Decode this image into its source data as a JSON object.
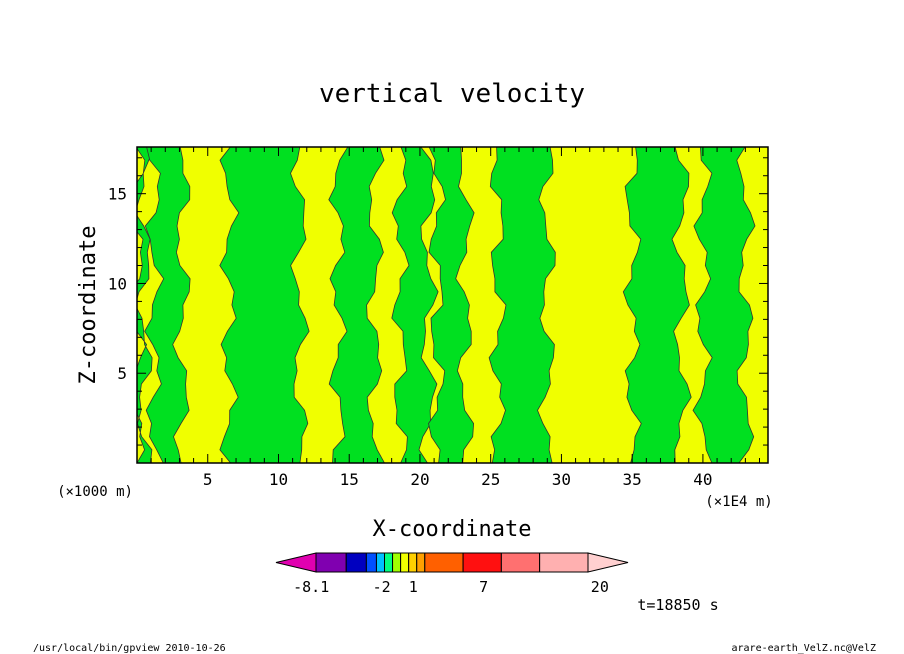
{
  "chart_data": {
    "type": "heatmap",
    "title": "vertical velocity",
    "xlabel": "X-coordinate",
    "ylabel": "Z-coordinate",
    "x_unit_note": "(×1E4 m)",
    "y_unit_note": "(×1000 m)",
    "xlim": [
      0,
      44.6
    ],
    "ylim": [
      0,
      17.6
    ],
    "xticks": [
      5,
      10,
      15,
      20,
      25,
      30,
      35,
      40
    ],
    "yticks": [
      5,
      10,
      15
    ],
    "xtick_labels": [
      "5",
      "10",
      "15",
      "20",
      "25",
      "30",
      "35",
      "40"
    ],
    "ytick_labels": [
      "5",
      "10",
      "15"
    ],
    "colors": {
      "negative_weak": "#00e020",
      "positive_weak": "#f0ff00",
      "contour": "#333333"
    },
    "green_regions_x_ranges": [
      [
        0.0,
        0.5
      ],
      [
        1.2,
        3.2
      ],
      [
        6.5,
        11.5
      ],
      [
        14.2,
        16.8
      ],
      [
        18.6,
        20.6
      ],
      [
        21.2,
        23.2
      ],
      [
        25.5,
        29.0
      ],
      [
        35.0,
        38.5
      ],
      [
        40.0,
        43.0
      ]
    ],
    "colorbar": {
      "colors": [
        "#e000b0",
        "#8000b0",
        "#0000c0",
        "#0050ff",
        "#00c0ff",
        "#00ff80",
        "#a0ff00",
        "#f0ff00",
        "#ffd000",
        "#ffa000",
        "#ff6000",
        "#ff1010",
        "#ff7070",
        "#ffb0b0",
        "#ffd0d0"
      ],
      "labels": [
        "-8.1",
        "-2",
        "1",
        "7",
        "20"
      ],
      "label_fractions": [
        0.1,
        0.3,
        0.39,
        0.59,
        0.92
      ]
    },
    "time_label": "t=18850 s"
  },
  "footer": {
    "left": "/usr/local/bin/gpview  2010-10-26",
    "right": "arare-earth_VelZ.nc@VelZ"
  }
}
